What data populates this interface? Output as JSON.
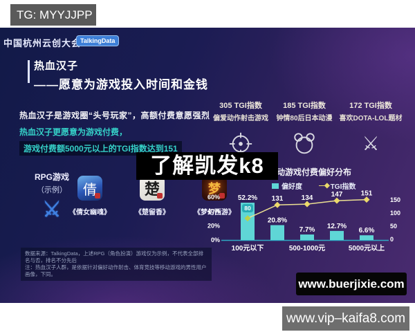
{
  "overlay": {
    "tg_label": "TG: MYYJJPP",
    "watermark": "了解凯发k8",
    "url_badge": "www.buerjixie.com",
    "bottom_url": "www.vip–kaifa8.com"
  },
  "header": {
    "event": "中国杭州云创大会",
    "brand": "TalkingData"
  },
  "title": {
    "main": "热血汉子",
    "subtitle": "——愿意为游戏投入时间和金钱"
  },
  "intro": {
    "line1": "热血汉子是游戏圈“头号玩家”，高额付费意愿强烈",
    "line2": "热血汉子更愿意为游戏付费，",
    "line3": "游戏付费额5000元以上的TGI指数达到151"
  },
  "rpg": {
    "label": "RPG游戏",
    "sub": "（示例）",
    "swords_glyph": "⚔",
    "apps": [
      {
        "name": "《倩女幽魂》",
        "glyph": "倩"
      },
      {
        "name": "《楚留香》",
        "glyph": "楚"
      },
      {
        "name": "《梦幻西游》",
        "glyph": "梦"
      }
    ]
  },
  "stats": [
    {
      "value": "305 TGI指数",
      "desc": "偏爱动作射击游戏",
      "icon": "crosshair-icon"
    },
    {
      "value": "185 TGI指数",
      "desc": "钟情80后日本动漫",
      "icon": "bear-icon"
    },
    {
      "value": "172 TGI指数",
      "desc": "喜欢DOTA-LOL题材",
      "icon": "crossed-swords-icon",
      "glyph": "⚔"
    }
  ],
  "chart_data": {
    "type": "bar",
    "combo": "bar+line",
    "title": "移动游戏付费偏好分布",
    "legend": [
      "偏好度",
      "TGI指数"
    ],
    "legend_position": "top",
    "categories": [
      "100元以下",
      "",
      "500-1000元",
      "",
      "5000元以上"
    ],
    "series": [
      {
        "name": "偏好度",
        "type": "bar",
        "unit": "%",
        "values": [
          52.2,
          20.8,
          7.7,
          12.7,
          6.6
        ]
      },
      {
        "name": "TGI指数",
        "type": "line",
        "values": [
          80,
          131,
          134,
          147,
          151
        ]
      }
    ],
    "bar_labels": [
      "52.2%",
      "20.8%",
      "7.7%",
      "12.7%",
      "6.6%"
    ],
    "line_labels": [
      "80",
      "131",
      "134",
      "147",
      "151"
    ],
    "left_axis": {
      "ticks": [
        "0%",
        "20%",
        "40%",
        "60%"
      ],
      "range": [
        0,
        60
      ]
    },
    "right_axis": {
      "ticks": [
        "0",
        "50",
        "100",
        "150"
      ],
      "range": [
        0,
        150
      ]
    },
    "grid": false,
    "colors": {
      "bar": "#5fd6d6",
      "line": "#ece092",
      "marker": "#ecd96b",
      "first_marker": "#b9d14e",
      "baseline": "#2fa9c4"
    }
  },
  "footnote": {
    "line1": "数据来源：TalkingData，上述RPG（角色扮演）游戏仅为示例，不代表全部排名与否，排名不分先后",
    "line2": "注：热血汉子人群，是依据针对偏好动作射击、体育竞技等移动游戏的男性用户画像，下同。"
  },
  "colors": {
    "accent_teal": "#35d1c8",
    "badge_blue": "#3d7fd8",
    "slide_navy": "#121a48",
    "slide_purple": "#4a2b70",
    "watermark_bg": "#000000",
    "tg_box_gray": "#5a5a5a",
    "vip_box_gray": "#6e6e6e"
  }
}
